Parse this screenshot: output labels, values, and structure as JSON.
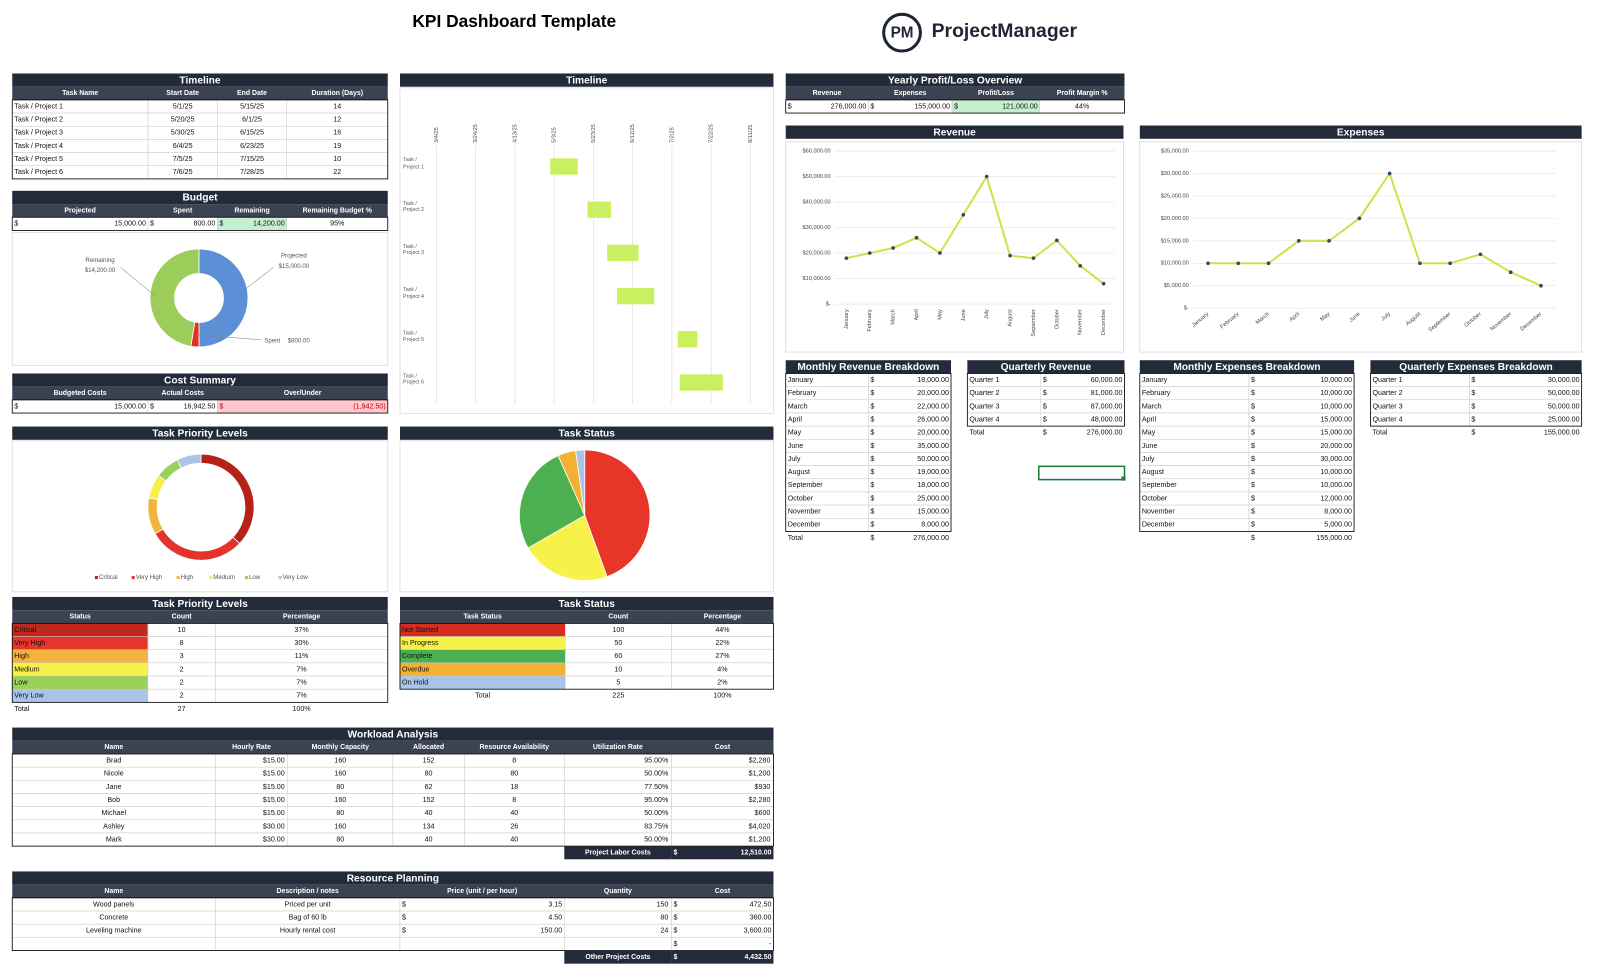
{
  "header": {
    "title": "KPI Dashboard Template",
    "logo_mark": "PM",
    "logo_text": "ProjectManager"
  },
  "timeline_table": {
    "title": "Timeline",
    "columns": [
      "Task Name",
      "Start Date",
      "End Date",
      "Duration (Days)"
    ],
    "rows": [
      [
        "Task / Project 1",
        "5/1/25",
        "5/15/25",
        "14"
      ],
      [
        "Task / Project 2",
        "5/20/25",
        "6/1/25",
        "12"
      ],
      [
        "Task / Project 3",
        "5/30/25",
        "6/15/25",
        "16"
      ],
      [
        "Task / Project 4",
        "6/4/25",
        "6/23/25",
        "19"
      ],
      [
        "Task / Project 5",
        "7/5/25",
        "7/15/25",
        "10"
      ],
      [
        "Task / Project 6",
        "7/6/25",
        "7/28/25",
        "22"
      ]
    ]
  },
  "budget_table": {
    "title": "Budget",
    "columns": [
      "Projected",
      "Spent",
      "Remaining",
      "Remaining Budget %"
    ],
    "rows": [
      [
        {
          "cur": "$",
          "amt": "15,000.00"
        },
        {
          "cur": "$",
          "amt": "800.00"
        },
        {
          "cur": "$",
          "amt": "14,200.00"
        },
        "95%"
      ]
    ]
  },
  "budget_chart": {
    "type": "donut",
    "categories": [
      "Projected",
      "Spent",
      "Remaining"
    ],
    "values": [
      15000,
      800,
      14200
    ],
    "value_labels": [
      "$15,000.00",
      "$800.00",
      "$14,200.00"
    ],
    "colors": [
      "#5b8fd6",
      "#e0301e",
      "#9ccc5a"
    ]
  },
  "cost_summary": {
    "title": "Cost Summary",
    "columns": [
      "Budgeted Costs",
      "Actual Costs",
      "Over/Under"
    ],
    "rows": [
      [
        {
          "cur": "$",
          "amt": "15,000.00"
        },
        {
          "cur": "$",
          "amt": "16,942.50"
        },
        {
          "cur": "$",
          "amt": "(1,942.50)"
        }
      ]
    ]
  },
  "gantt": {
    "type": "gantt",
    "title": "Timeline",
    "categories": [
      "Task / Project 1",
      "Task / Project 2",
      "Task / Project 3",
      "Task / Project 4",
      "Task / Project 5",
      "Task / Project 6"
    ],
    "start": [
      "2025-05-01",
      "2025-05-20",
      "2025-05-30",
      "2025-06-04",
      "2025-07-05",
      "2025-07-06"
    ],
    "values": [
      14,
      12,
      16,
      19,
      10,
      22
    ],
    "color": "#c8f060",
    "xlim": [
      "2025-02-28",
      "2025-08-16"
    ],
    "xticks": [
      {
        "value": "2025-03-04",
        "label": "3/4/25"
      },
      {
        "value": "2025-03-24",
        "label": "3/24/25"
      },
      {
        "value": "2025-04-13",
        "label": "4/13/25"
      },
      {
        "value": "2025-05-03",
        "label": "5/3/25"
      },
      {
        "value": "2025-05-23",
        "label": "5/23/25"
      },
      {
        "value": "2025-06-12",
        "label": "6/12/25"
      },
      {
        "value": "2025-07-02",
        "label": "7/2/25"
      },
      {
        "value": "2025-07-22",
        "label": "7/22/25"
      },
      {
        "value": "2025-08-11",
        "label": "8/11/25"
      }
    ],
    "grid": true
  },
  "profit_overview": {
    "title": "Yearly Profit/Loss Overview",
    "columns": [
      "Revenue",
      "Expenses",
      "Profit/Loss",
      "Profit Margin %"
    ],
    "rows": [
      [
        {
          "cur": "$",
          "amt": "276,000.00"
        },
        {
          "cur": "$",
          "amt": "155,000.00"
        },
        {
          "cur": "$",
          "amt": "121,000.00"
        },
        "44%"
      ]
    ]
  },
  "revenue_chart": {
    "type": "line",
    "title": "Revenue",
    "categories": [
      "January",
      "February",
      "March",
      "April",
      "May",
      "June",
      "July",
      "August",
      "September",
      "October",
      "November",
      "December"
    ],
    "values": [
      18000,
      20000,
      22000,
      26000,
      20000,
      35000,
      50000,
      19000,
      18000,
      25000,
      15000,
      8000
    ],
    "color": "#c8e64b",
    "marker_color": "#2e4a6b",
    "ylim": [
      0,
      60000
    ],
    "yticks": [
      {
        "value": 0,
        "label": "$-"
      },
      {
        "value": 10000,
        "label": "$10,000.00"
      },
      {
        "value": 20000,
        "label": "$20,000.00"
      },
      {
        "value": 30000,
        "label": "$30,000.00"
      },
      {
        "value": 40000,
        "label": "$40,000.00"
      },
      {
        "value": 50000,
        "label": "$50,000.00"
      },
      {
        "value": 60000,
        "label": "$60,000.00"
      }
    ],
    "grid": true
  },
  "expenses_chart": {
    "type": "line",
    "title": "Expenses",
    "categories": [
      "January",
      "February",
      "March",
      "April",
      "May",
      "June",
      "July",
      "August",
      "September",
      "October",
      "November",
      "December"
    ],
    "values": [
      10000,
      10000,
      10000,
      15000,
      15000,
      20000,
      30000,
      10000,
      10000,
      12000,
      8000,
      5000
    ],
    "color": "#c8e64b",
    "marker_color": "#2e4a6b",
    "ylim": [
      0,
      35000
    ],
    "yticks": [
      {
        "value": 0,
        "label": "$-"
      },
      {
        "value": 5000,
        "label": "$5,000.00"
      },
      {
        "value": 10000,
        "label": "$10,000.00"
      },
      {
        "value": 15000,
        "label": "$15,000.00"
      },
      {
        "value": 20000,
        "label": "$20,000.00"
      },
      {
        "value": 25000,
        "label": "$25,000.00"
      },
      {
        "value": 30000,
        "label": "$30,000.00"
      },
      {
        "value": 35000,
        "label": "$35,000.00"
      }
    ],
    "grid": true
  },
  "monthly_revenue": {
    "title": "Monthly Revenue Breakdown",
    "rows": [
      [
        "January",
        {
          "cur": "$",
          "amt": "18,000.00"
        }
      ],
      [
        "February",
        {
          "cur": "$",
          "amt": "20,000.00"
        }
      ],
      [
        "March",
        {
          "cur": "$",
          "amt": "22,000.00"
        }
      ],
      [
        "April",
        {
          "cur": "$",
          "amt": "26,000.00"
        }
      ],
      [
        "May",
        {
          "cur": "$",
          "amt": "20,000.00"
        }
      ],
      [
        "June",
        {
          "cur": "$",
          "amt": "35,000.00"
        }
      ],
      [
        "July",
        {
          "cur": "$",
          "amt": "50,000.00"
        }
      ],
      [
        "August",
        {
          "cur": "$",
          "amt": "19,000.00"
        }
      ],
      [
        "September",
        {
          "cur": "$",
          "amt": "18,000.00"
        }
      ],
      [
        "October",
        {
          "cur": "$",
          "amt": "25,000.00"
        }
      ],
      [
        "November",
        {
          "cur": "$",
          "amt": "15,000.00"
        }
      ],
      [
        "December",
        {
          "cur": "$",
          "amt": "8,000.00"
        }
      ]
    ],
    "total": [
      "Total",
      {
        "cur": "$",
        "amt": "276,000.00"
      }
    ]
  },
  "quarterly_revenue": {
    "title": "Quarterly Revenue",
    "rows": [
      [
        "Quarter 1",
        {
          "cur": "$",
          "amt": "60,000.00"
        }
      ],
      [
        "Quarter 2",
        {
          "cur": "$",
          "amt": "81,000.00"
        }
      ],
      [
        "Quarter 3",
        {
          "cur": "$",
          "amt": "87,000.00"
        }
      ],
      [
        "Quarter 4",
        {
          "cur": "$",
          "amt": "48,000.00"
        }
      ]
    ],
    "total": [
      "Total",
      {
        "cur": "$",
        "amt": "276,000.00"
      }
    ]
  },
  "monthly_expenses": {
    "title": "Monthly Expenses Breakdown",
    "rows": [
      [
        "January",
        {
          "cur": "$",
          "amt": "10,000.00"
        }
      ],
      [
        "February",
        {
          "cur": "$",
          "amt": "10,000.00"
        }
      ],
      [
        "March",
        {
          "cur": "$",
          "amt": "10,000.00"
        }
      ],
      [
        "April",
        {
          "cur": "$",
          "amt": "15,000.00"
        }
      ],
      [
        "May",
        {
          "cur": "$",
          "amt": "15,000.00"
        }
      ],
      [
        "June",
        {
          "cur": "$",
          "amt": "20,000.00"
        }
      ],
      [
        "July",
        {
          "cur": "$",
          "amt": "30,000.00"
        }
      ],
      [
        "August",
        {
          "cur": "$",
          "amt": "10,000.00"
        }
      ],
      [
        "September",
        {
          "cur": "$",
          "amt": "10,000.00"
        }
      ],
      [
        "October",
        {
          "cur": "$",
          "amt": "12,000.00"
        }
      ],
      [
        "November",
        {
          "cur": "$",
          "amt": "8,000.00"
        }
      ],
      [
        "December",
        {
          "cur": "$",
          "amt": "5,000.00"
        }
      ]
    ],
    "total": [
      null,
      {
        "cur": "$",
        "amt": "155,000.00"
      }
    ]
  },
  "quarterly_expenses": {
    "title": "Quarterly Expenses Breakdown",
    "rows": [
      [
        "Quarter 1",
        {
          "cur": "$",
          "amt": "30,000.00"
        }
      ],
      [
        "Quarter 2",
        {
          "cur": "$",
          "amt": "50,000.00"
        }
      ],
      [
        "Quarter 3",
        {
          "cur": "$",
          "amt": "50,000.00"
        }
      ],
      [
        "Quarter 4",
        {
          "cur": "$",
          "amt": "25,000.00"
        }
      ]
    ],
    "total": [
      "Total",
      {
        "cur": "$",
        "amt": "155,000.00"
      }
    ]
  },
  "priority_chart": {
    "type": "donut",
    "title": "Task Priority Levels",
    "categories": [
      "Critical",
      "Very High",
      "High",
      "Medium",
      "Low",
      "Very Low"
    ],
    "values": [
      10,
      8,
      3,
      2,
      2,
      2
    ],
    "colors": [
      "#b52218",
      "#e2342a",
      "#f4b23e",
      "#f7ef4a",
      "#9bd15a",
      "#a9c4e8"
    ],
    "legend": "bottom"
  },
  "status_chart": {
    "type": "pie",
    "title": "Task Status",
    "categories": [
      "Not Started",
      "In Progress",
      "Complete",
      "Overdue",
      "On Hold"
    ],
    "values": [
      100,
      50,
      60,
      10,
      5
    ],
    "colors": [
      "#e8352a",
      "#f7f24a",
      "#4caf50",
      "#f2b134",
      "#a9c4e8"
    ]
  },
  "priority_table": {
    "title": "Task Priority Levels",
    "columns": [
      "Status",
      "Count",
      "Percentage"
    ],
    "rows": [
      [
        "Critical",
        "10",
        "37%"
      ],
      [
        "Very High",
        "8",
        "30%"
      ],
      [
        "High",
        "3",
        "11%"
      ],
      [
        "Medium",
        "2",
        "7%"
      ],
      [
        "Low",
        "2",
        "7%"
      ],
      [
        "Very Low",
        "2",
        "7%"
      ]
    ],
    "row_colors": [
      "#c0281c",
      "#e8352a",
      "#f4b23e",
      "#f7f24a",
      "#9bd15a",
      "#a9c4e8"
    ],
    "total": [
      "Total",
      "27",
      "100%"
    ]
  },
  "status_table": {
    "title": "Task Status",
    "columns": [
      "Task Status",
      "Count",
      "Percentage"
    ],
    "rows": [
      [
        "Not Started",
        "100",
        "44%"
      ],
      [
        "In Progress",
        "50",
        "22%"
      ],
      [
        "Complete",
        "60",
        "27%"
      ],
      [
        "Overdue",
        "10",
        "4%"
      ],
      [
        "On Hold",
        "5",
        "2%"
      ]
    ],
    "row_colors": [
      "#d62b1f",
      "#f7f24a",
      "#4caf50",
      "#f2b134",
      "#a9c4e8"
    ],
    "total": [
      "Total",
      "225",
      "100%"
    ]
  },
  "workload": {
    "title": "Workload Analysis",
    "columns": [
      "Name",
      "Hourly Rate",
      "Monthly Capacity",
      "Allocated",
      "Resource Availability",
      "Utilization Rate",
      "Cost"
    ],
    "rows": [
      [
        "Brad",
        "$15.00",
        "160",
        "152",
        "8",
        "95.00%",
        "$2,280"
      ],
      [
        "Nicole",
        "$15.00",
        "160",
        "80",
        "80",
        "50.00%",
        "$1,200"
      ],
      [
        "Jane",
        "$15.00",
        "80",
        "62",
        "18",
        "77.50%",
        "$930"
      ],
      [
        "Bob",
        "$15.00",
        "160",
        "152",
        "8",
        "95.00%",
        "$2,280"
      ],
      [
        "Michael",
        "$15.00",
        "80",
        "40",
        "40",
        "50.00%",
        "$600"
      ],
      [
        "Ashley",
        "$30.00",
        "160",
        "134",
        "26",
        "83.75%",
        "$4,020"
      ],
      [
        "Mark",
        "$30.00",
        "80",
        "40",
        "40",
        "50.00%",
        "$1,200"
      ]
    ],
    "footer": {
      "label": "Project Labor Costs",
      "value": {
        "cur": "$",
        "amt": "12,510.00"
      }
    }
  },
  "resources": {
    "title": "Resource Planning",
    "columns": [
      "Name",
      "Description / notes",
      "Price (unit / per hour)",
      "Quantity",
      "Cost"
    ],
    "rows": [
      [
        "Wood panels",
        "Priced per unit",
        {
          "cur": "$",
          "amt": "3.15"
        },
        "150",
        {
          "cur": "$",
          "amt": "472.50"
        }
      ],
      [
        "Concrete",
        "Bag of 60 lb",
        {
          "cur": "$",
          "amt": "4.50"
        },
        "80",
        {
          "cur": "$",
          "amt": "360.00"
        }
      ],
      [
        "Leveling machine",
        "Hourly rental cost",
        {
          "cur": "$",
          "amt": "150.00"
        },
        "24",
        {
          "cur": "$",
          "amt": "3,600.00"
        }
      ],
      [
        null,
        null,
        null,
        null,
        {
          "cur": "$",
          "amt": "-"
        }
      ]
    ],
    "footer": {
      "label": "Other Project Costs",
      "value": {
        "cur": "$",
        "amt": "4,432.50"
      }
    }
  }
}
